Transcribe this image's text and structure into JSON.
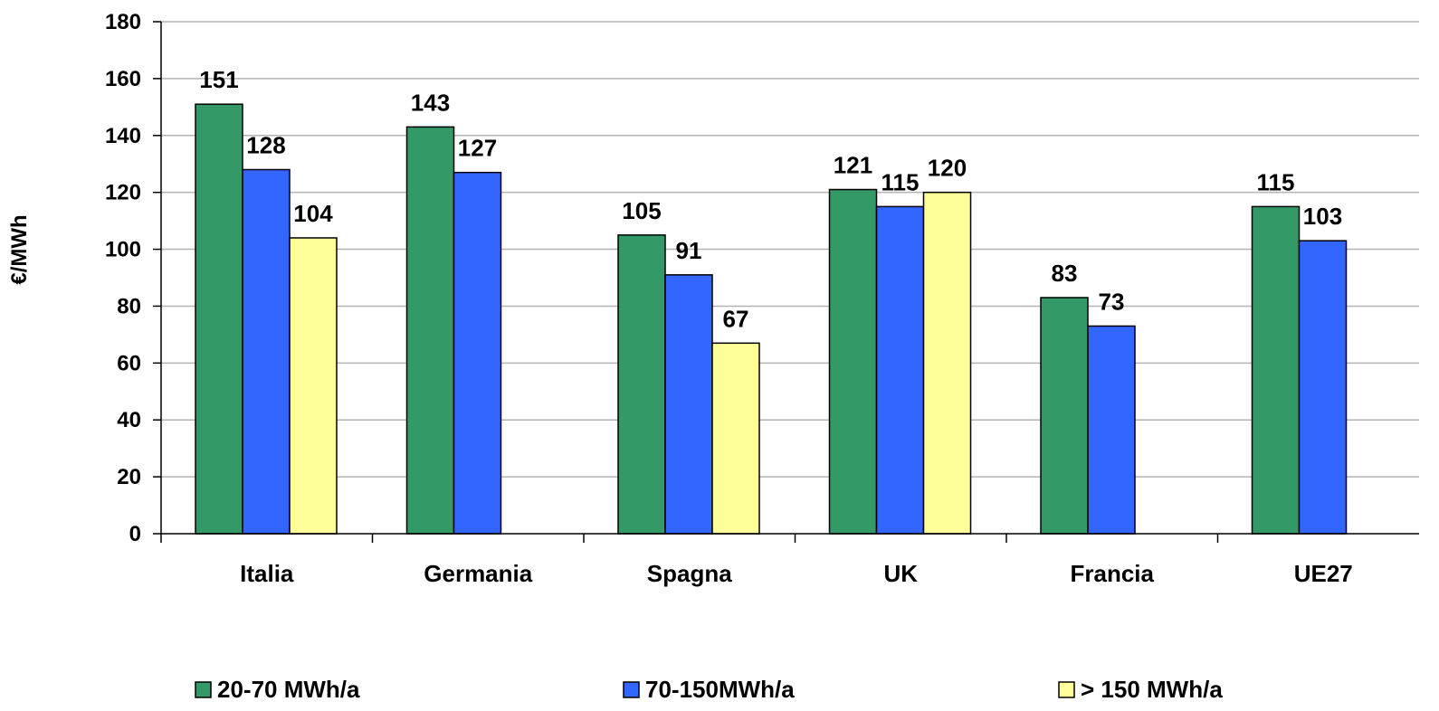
{
  "chart_data": {
    "type": "bar",
    "ylabel": "€/MWh",
    "ylim": [
      0,
      180
    ],
    "yticks": [
      0,
      20,
      40,
      60,
      80,
      100,
      120,
      140,
      160,
      180
    ],
    "grid": true,
    "legend_position": "bottom",
    "categories": [
      "Italia",
      "Germania",
      "Spagna",
      "UK",
      "Francia",
      "UE27"
    ],
    "series": [
      {
        "name": "20-70 MWh/a",
        "color": "#339966",
        "values": [
          151,
          143,
          105,
          121,
          83,
          115
        ]
      },
      {
        "name": "70-150MWh/a",
        "color": "#3366FF",
        "values": [
          128,
          127,
          91,
          115,
          73,
          103
        ]
      },
      {
        "name": "> 150 MWh/a",
        "color": "#FFFF99",
        "values": [
          104,
          null,
          67,
          120,
          null,
          null
        ]
      }
    ]
  }
}
